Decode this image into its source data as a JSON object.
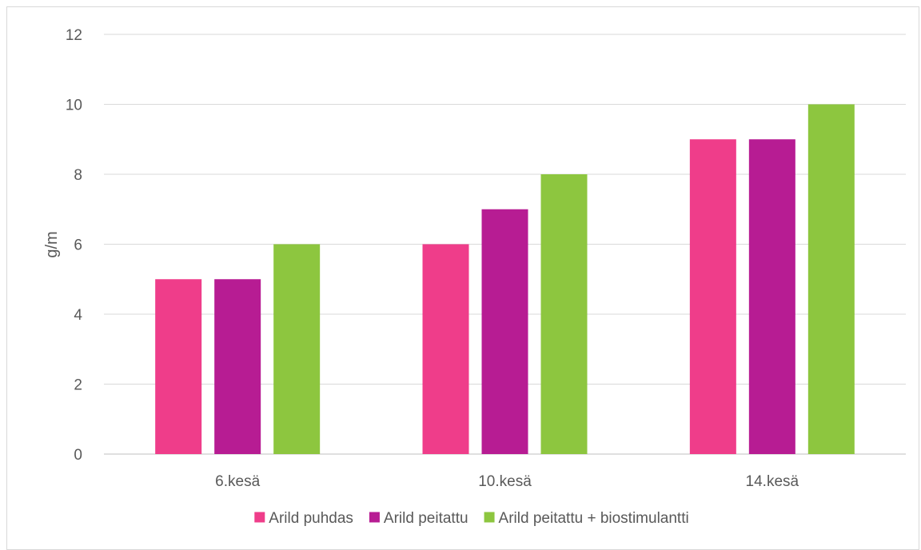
{
  "chart_data": {
    "type": "bar",
    "title": "",
    "xlabel": "",
    "ylabel": "g/m",
    "categories": [
      "6.kesä",
      "10.kesä",
      "14.kesä"
    ],
    "series": [
      {
        "name": "Arild puhdas",
        "color": "#ef3d8a",
        "values": [
          5,
          6,
          9
        ]
      },
      {
        "name": "Arild peitattu",
        "color": "#b71c93",
        "values": [
          5,
          7,
          9
        ]
      },
      {
        "name": "Arild peitattu + biostimulantti",
        "color": "#8dc63f",
        "values": [
          6,
          8,
          10
        ]
      }
    ],
    "ylim": [
      0,
      12
    ],
    "yticks": [
      0,
      2,
      4,
      6,
      8,
      10,
      12
    ],
    "grid": true,
    "legend_position": "bottom",
    "colors": {
      "grid": "#d9d9d9",
      "axis": "#bfbfbf",
      "text": "#595959"
    }
  }
}
